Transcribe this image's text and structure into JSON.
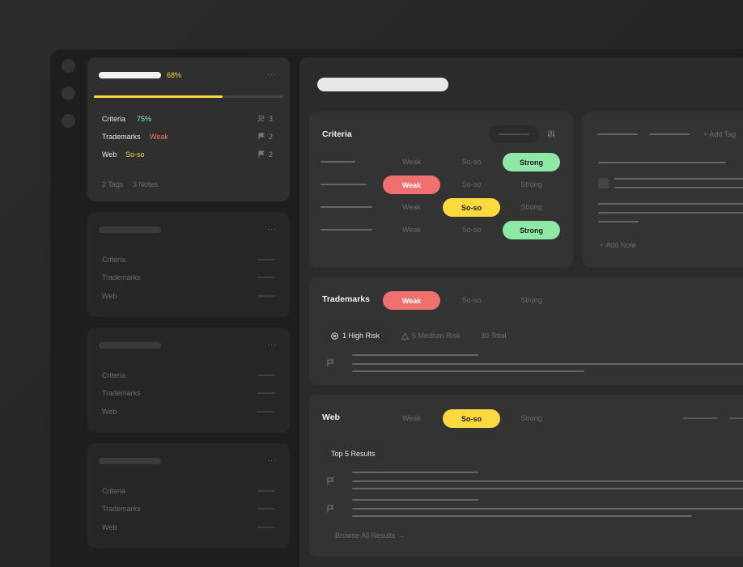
{
  "top_card": {
    "progress_label": "68%",
    "progress": 0.68,
    "more": "···",
    "rows": [
      {
        "label": "Criteria",
        "value": "75%",
        "value_color": "#8ee8a6",
        "count": "3",
        "icon": "users-icon"
      },
      {
        "label": "Trademarks",
        "value": "Weak",
        "value_color": "#f07070",
        "count": "2",
        "icon": "flag-icon"
      },
      {
        "label": "Web",
        "value": "So-so",
        "value_color": "#fbd93f",
        "count": "2",
        "icon": "flag-icon"
      }
    ],
    "footer_tags": "2 Tags",
    "footer_notes": "3 Notes"
  },
  "list_cards": [
    {
      "more": "···",
      "rows": [
        "Criteria",
        "Trademarks",
        "Web"
      ]
    },
    {
      "more": "···",
      "rows": [
        "Criteria",
        "Trademarks",
        "Web"
      ]
    },
    {
      "more": "···",
      "rows": [
        "Criteria",
        "Trademarks",
        "Web"
      ]
    }
  ],
  "criteria": {
    "title": "Criteria",
    "options": [
      "Weak",
      "So-so",
      "Strong"
    ],
    "rows": [
      {
        "selected": "Strong"
      },
      {
        "selected": "Weak"
      },
      {
        "selected": "So-so"
      },
      {
        "selected": "Strong"
      }
    ]
  },
  "notes": {
    "add_tag": "+ Add Tag",
    "add_note": "+ Add Note"
  },
  "trademarks": {
    "title": "Trademarks",
    "selected": "Weak",
    "options": [
      "Weak",
      "So-so",
      "Strong"
    ],
    "high_risk": "1 High Risk",
    "medium_risk": "5 Medium Risk",
    "total": "30 Total"
  },
  "web": {
    "title": "Web",
    "selected": "So-so",
    "options": [
      "Weak",
      "So-so",
      "Strong"
    ],
    "top_results": "Top 5 Results",
    "browse_all": "Browse All Results →"
  }
}
